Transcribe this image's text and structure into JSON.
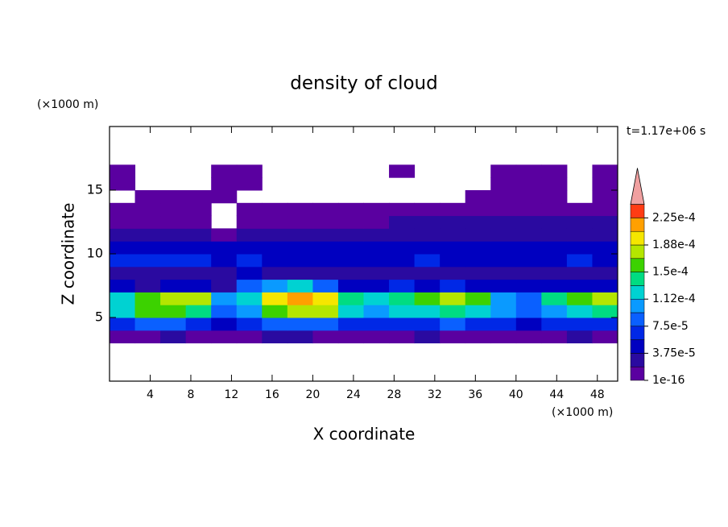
{
  "chart_data": {
    "type": "contourf",
    "title": "density of cloud",
    "xlabel": "X coordinate",
    "ylabel": "Z coordinate",
    "xunit": "(×1000 m)",
    "yunit": "(×1000 m)",
    "annotation": "t=1.17e+06 s",
    "xlim": [
      0,
      50
    ],
    "ylim": [
      0,
      20
    ],
    "xticks": [
      4,
      8,
      12,
      16,
      20,
      24,
      28,
      32,
      36,
      40,
      44,
      48
    ],
    "yticks": [
      5,
      10,
      15
    ],
    "x": [
      1.25,
      3.75,
      6.25,
      8.75,
      11.25,
      13.75,
      16.25,
      18.75,
      21.25,
      23.75,
      26.25,
      28.75,
      31.25,
      33.75,
      36.25,
      38.75,
      41.25,
      43.75,
      46.25,
      48.75
    ],
    "y": [
      3.5,
      4.5,
      5.5,
      6.5,
      7.5,
      8.5,
      9.5,
      10.5,
      11.5,
      12.5,
      13.5,
      14.5,
      15.5,
      16.5,
      17.5
    ],
    "z": [
      [
        1.5e-05,
        1.5e-05,
        2.5e-05,
        1.5e-05,
        1.5e-05,
        1.5e-05,
        2.5e-05,
        2.5e-05,
        1.5e-05,
        1.5e-05,
        1.5e-05,
        1.5e-05,
        2.5e-05,
        1.5e-05,
        1.5e-05,
        1.5e-05,
        1.5e-05,
        1.5e-05,
        2.5e-05,
        1.5e-05
      ],
      [
        7e-05,
        8e-05,
        8e-05,
        7e-05,
        5e-05,
        6e-05,
        8e-05,
        9e-05,
        8e-05,
        6e-05,
        6e-05,
        7e-05,
        7e-05,
        8e-05,
        7e-05,
        6e-05,
        5e-05,
        6e-05,
        7e-05,
        7e-05
      ],
      [
        0.00012,
        0.00015,
        0.00016,
        0.00014,
        9e-05,
        0.00011,
        0.00016,
        0.00018,
        0.00017,
        0.00012,
        0.00011,
        0.00012,
        0.00013,
        0.00014,
        0.00013,
        0.0001,
        9e-05,
        0.00011,
        0.00013,
        0.00014
      ],
      [
        0.00013,
        0.00016,
        0.00018,
        0.00017,
        0.00011,
        0.00013,
        0.0002,
        0.00021,
        0.00019,
        0.00014,
        0.00012,
        0.00014,
        0.00015,
        0.00017,
        0.00016,
        0.00011,
        9e-05,
        0.00014,
        0.00016,
        0.00017
      ],
      [
        4e-05,
        2e-05,
        4e-05,
        5e-05,
        3e-05,
        8e-05,
        0.0001,
        0.00012,
        8e-05,
        4e-05,
        5e-05,
        6e-05,
        5e-05,
        6e-05,
        5e-05,
        4e-05,
        4e-05,
        5e-05,
        4e-05,
        5e-05
      ],
      [
        3e-05,
        2e-05,
        3e-05,
        3e-05,
        3e-05,
        4e-05,
        3e-05,
        3e-05,
        2e-05,
        3e-05,
        3e-05,
        3e-05,
        3e-05,
        3e-05,
        3e-05,
        3e-05,
        3e-05,
        3e-05,
        3e-05,
        3e-05
      ],
      [
        6e-05,
        6e-05,
        6e-05,
        6e-05,
        5e-05,
        7e-05,
        5e-05,
        5e-05,
        5e-05,
        5e-05,
        5e-05,
        5e-05,
        6e-05,
        5e-05,
        5e-05,
        5e-05,
        5e-05,
        5e-05,
        6e-05,
        5e-05
      ],
      [
        5e-05,
        5e-05,
        4e-05,
        4e-05,
        4e-05,
        4e-05,
        4e-05,
        4e-05,
        4e-05,
        4e-05,
        4e-05,
        4e-05,
        4e-05,
        4e-05,
        4e-05,
        4e-05,
        4e-05,
        4e-05,
        4e-05,
        4e-05
      ],
      [
        2e-05,
        2e-05,
        2e-05,
        2e-05,
        1.5e-05,
        2.5e-05,
        2.5e-05,
        2.5e-05,
        2.5e-05,
        2.5e-05,
        2.5e-05,
        3e-05,
        2.5e-05,
        3e-05,
        2.5e-05,
        2.5e-05,
        3e-05,
        2.5e-05,
        3e-05,
        2.5e-05
      ],
      [
        1.2e-05,
        1.2e-05,
        1.2e-05,
        1.2e-05,
        null,
        1.2e-05,
        1.2e-05,
        1.2e-05,
        1.2e-05,
        1.2e-05,
        1.2e-05,
        2.5e-05,
        2.5e-05,
        2.5e-05,
        2.5e-05,
        2.5e-05,
        2.5e-05,
        2.5e-05,
        2.5e-05,
        2.5e-05
      ],
      [
        1.2e-05,
        1.2e-05,
        1.2e-05,
        1.2e-05,
        null,
        1.2e-05,
        1.2e-05,
        1.2e-05,
        1.2e-05,
        1.2e-05,
        1.2e-05,
        1.2e-05,
        1.2e-05,
        1.2e-05,
        1.2e-05,
        1.2e-05,
        1.2e-05,
        1.2e-05,
        1.2e-05,
        1.2e-05
      ],
      [
        null,
        1.2e-05,
        1.2e-05,
        1.2e-05,
        1.2e-05,
        null,
        null,
        null,
        null,
        null,
        null,
        null,
        null,
        null,
        1.2e-05,
        1.2e-05,
        1.2e-05,
        1.2e-05,
        null,
        1.2e-05
      ],
      [
        1.2e-05,
        null,
        null,
        null,
        1.2e-05,
        1.2e-05,
        null,
        null,
        null,
        null,
        null,
        null,
        null,
        null,
        null,
        1.2e-05,
        1.2e-05,
        1.2e-05,
        null,
        1.2e-05
      ],
      [
        1.2e-05,
        null,
        null,
        null,
        1.2e-05,
        1.2e-05,
        null,
        null,
        null,
        null,
        null,
        1.2e-05,
        null,
        null,
        null,
        1.2e-05,
        1.2e-05,
        1.2e-05,
        null,
        1.2e-05
      ],
      [
        null,
        null,
        null,
        null,
        null,
        null,
        null,
        null,
        null,
        null,
        null,
        null,
        null,
        null,
        null,
        null,
        null,
        null,
        null,
        null
      ]
    ],
    "levels": [
      1e-16,
      1.875e-05,
      3.75e-05,
      5.625e-05,
      7.5e-05,
      9.375e-05,
      0.0001125,
      0.00013125,
      0.00015,
      0.00016875,
      0.0001875,
      0.00020625,
      0.000225,
      0.00024375
    ],
    "colors": [
      "#5a00a0",
      "#2a0aa0",
      "#0000c0",
      "#0028e6",
      "#0a60ff",
      "#0a9aff",
      "#00d2d2",
      "#00dc82",
      "#3cd200",
      "#b4e600",
      "#f5e600",
      "#ffa000",
      "#ff3c14"
    ],
    "overflow_color": "#f0a0a0",
    "colorbar_ticks": [
      1e-16,
      {
        "value": 3.75e-05,
        "label": "3.75e-5"
      },
      {
        "value": 7.5e-05,
        "label": "7.5e-5"
      },
      {
        "value": 0.0001125,
        "label": "1.12e-4"
      },
      {
        "value": 0.00015,
        "label": "1.5e-4"
      },
      {
        "value": 0.0001875,
        "label": "1.88e-4"
      },
      {
        "value": 0.000225,
        "label": "2.25e-4"
      }
    ]
  }
}
